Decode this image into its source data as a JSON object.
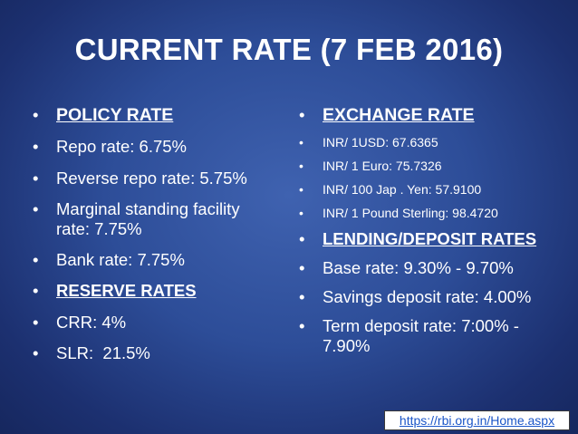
{
  "title": "CURRENT RATE (7 FEB 2016)",
  "left": {
    "heading": "POLICY RATE",
    "items": [
      "Repo rate: 6.75%",
      "Reverse repo rate: 5.75%",
      "Marginal standing facility rate: 7.75%",
      "Bank rate: 7.75%"
    ],
    "subheading": "RESERVE RATES",
    "items2": [
      "CRR: 4%",
      "SLR:  21.5%"
    ]
  },
  "right": {
    "heading": "EXCHANGE RATE",
    "items": [
      "INR/ 1USD: 67.6365",
      "INR/ 1 Euro: 75.7326",
      "INR/ 100 Jap . Yen: 57.9100",
      "INR/ 1 Pound Sterling: 98.4720"
    ],
    "subheading": "LENDING/DEPOSIT RATES",
    "items2": [
      "Base rate: 9.30% - 9.70%",
      "Savings deposit rate: 4.00%",
      "Term deposit rate: 7:00% - 7.90%"
    ]
  },
  "link": "https://rbi.org.in/Home.aspx"
}
